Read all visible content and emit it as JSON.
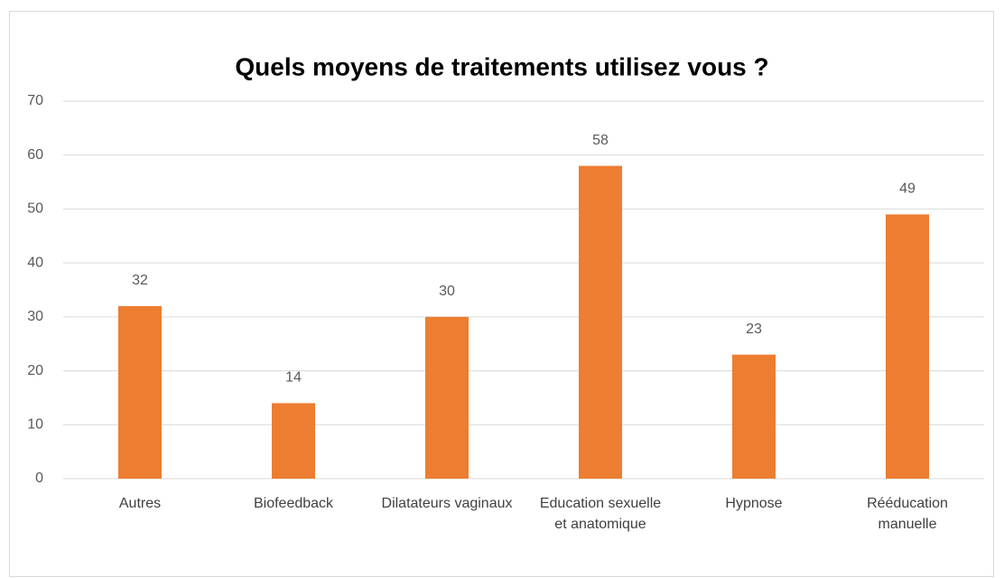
{
  "chart_data": {
    "type": "bar",
    "title": "Quels moyens de traitements utilisez vous ?",
    "categories": [
      "Autres",
      "Biofeedback",
      "Dilatateurs vaginaux",
      "Education sexuelle et anatomique",
      "Hypnose",
      "Rééducation manuelle"
    ],
    "values": [
      32,
      14,
      30,
      58,
      23,
      49
    ],
    "color": "#ed7d31",
    "ylim": [
      0,
      70
    ],
    "yticks": [
      0,
      10,
      20,
      30,
      40,
      50,
      60,
      70
    ],
    "grid": true
  }
}
